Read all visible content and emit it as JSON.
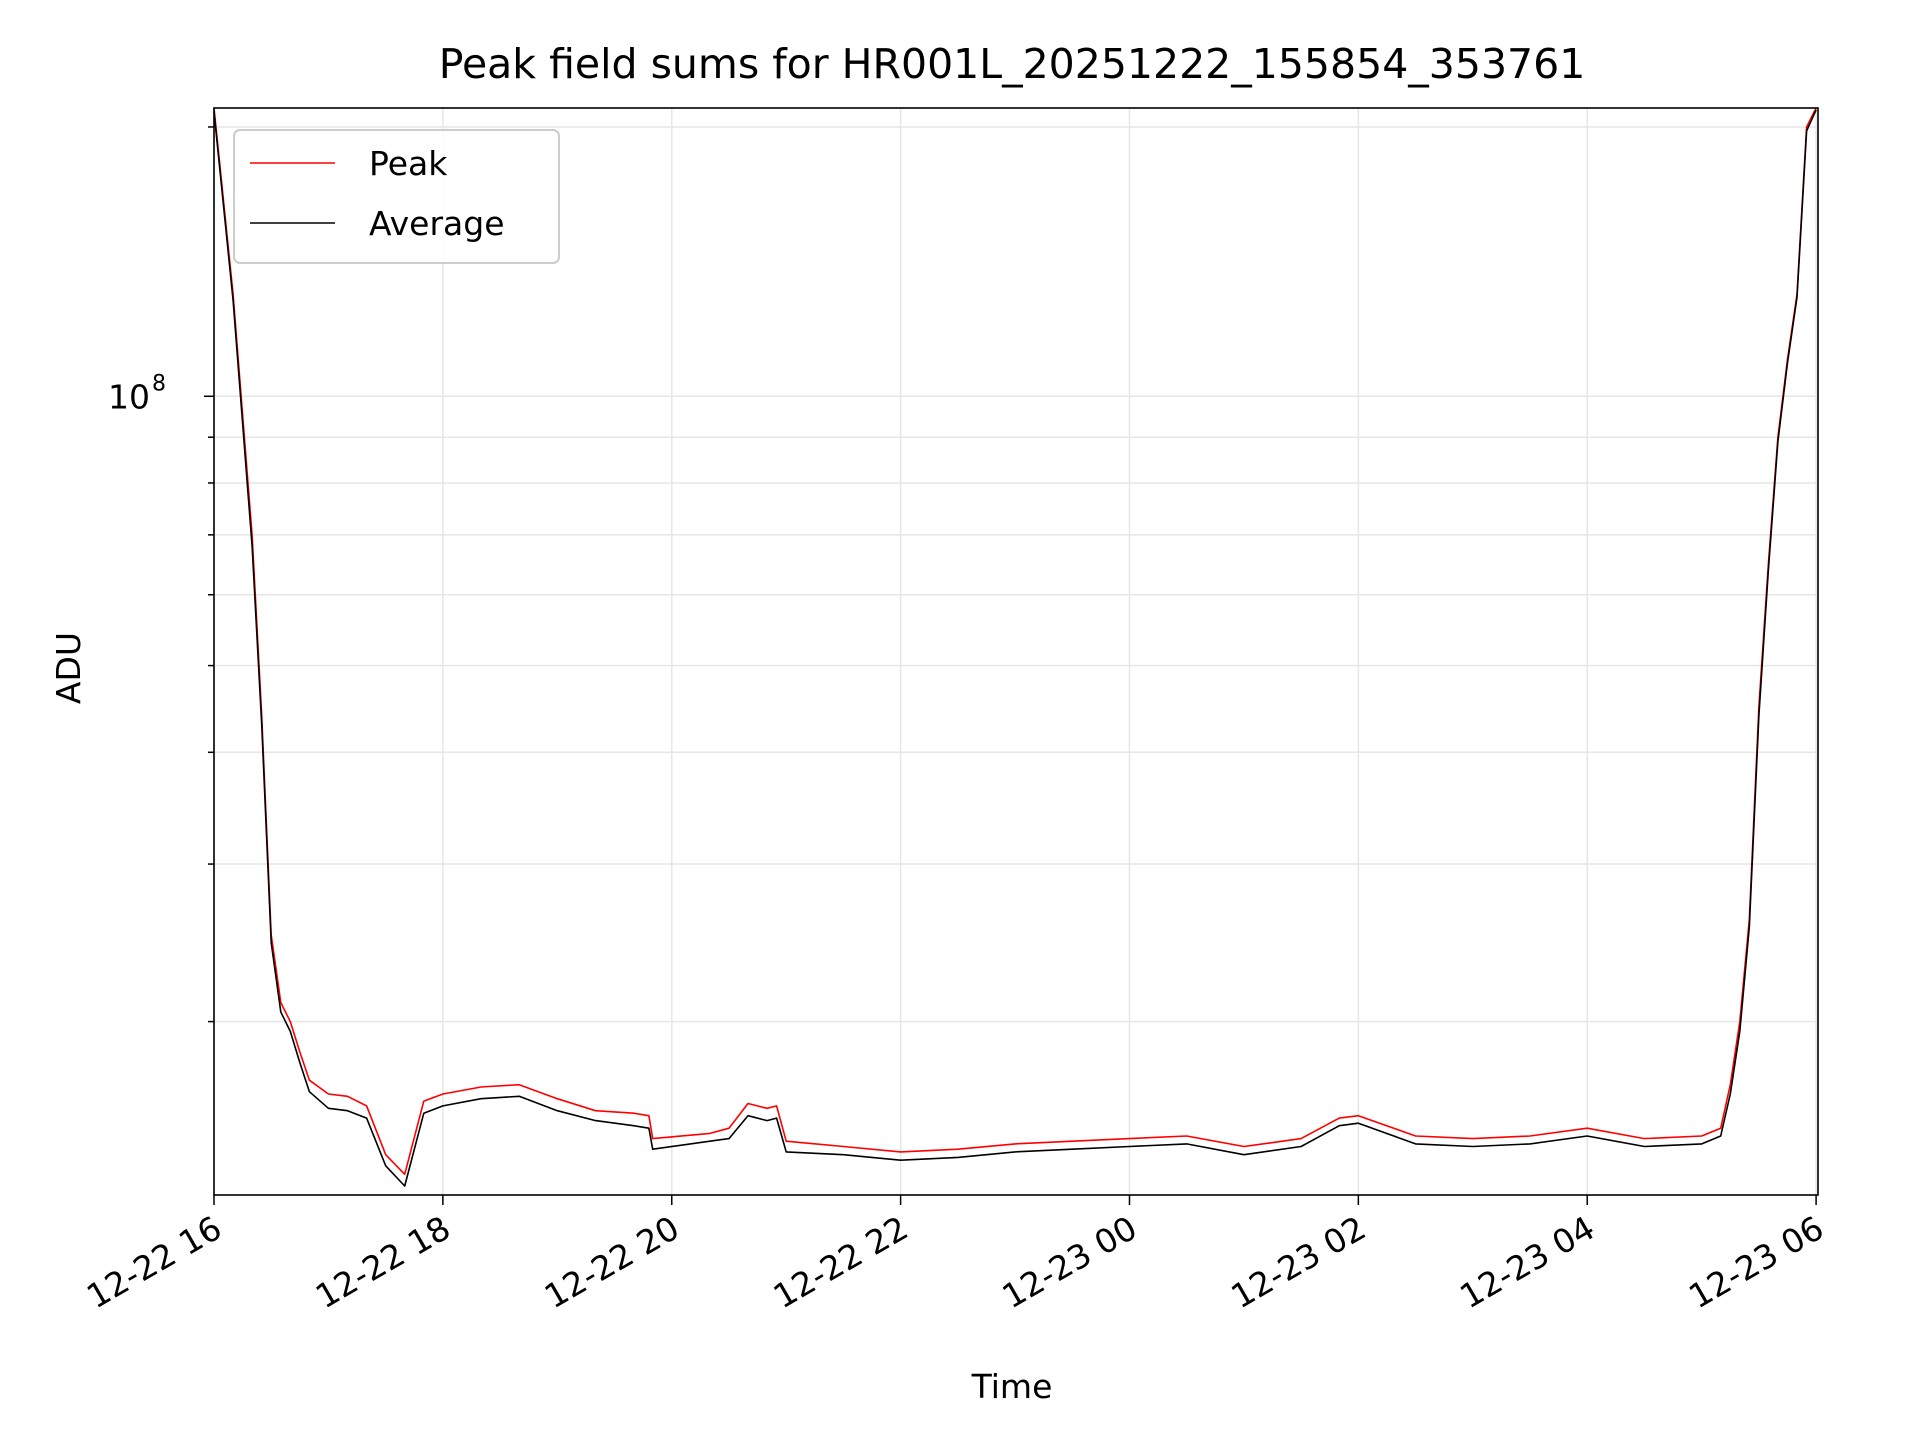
{
  "chart_data": {
    "type": "line",
    "title": "Peak field sums for HR001L_20251222_155854_353761",
    "xlabel": "Time",
    "ylabel": "ADU",
    "y_scale": "log",
    "ylim": [
      12800000,
      210000000
    ],
    "xlim": [
      "2025-12-22 16:00",
      "2025-12-23 06:01"
    ],
    "x_ticks": [
      "12-22 16",
      "12-22 18",
      "12-22 20",
      "12-22 22",
      "12-23 00",
      "12-23 02",
      "12-23 04",
      "12-23 06"
    ],
    "y_ticks": [
      {
        "value": 100000000,
        "base": "10",
        "exp": "8"
      }
    ],
    "grid": true,
    "legend": {
      "position": "top-left"
    },
    "series": [
      {
        "name": "Peak",
        "color": "#ff0000",
        "x": [
          "2025-12-22 16:00",
          "2025-12-22 16:10",
          "2025-12-22 16:20",
          "2025-12-22 16:25",
          "2025-12-22 16:30",
          "2025-12-22 16:35",
          "2025-12-22 16:40",
          "2025-12-22 16:45",
          "2025-12-22 16:50",
          "2025-12-22 17:00",
          "2025-12-22 17:10",
          "2025-12-22 17:20",
          "2025-12-22 17:30",
          "2025-12-22 17:40",
          "2025-12-22 17:50",
          "2025-12-22 18:00",
          "2025-12-22 18:20",
          "2025-12-22 18:40",
          "2025-12-22 19:00",
          "2025-12-22 19:20",
          "2025-12-22 19:40",
          "2025-12-22 19:48",
          "2025-12-22 19:50",
          "2025-12-22 20:20",
          "2025-12-22 20:30",
          "2025-12-22 20:40",
          "2025-12-22 20:50",
          "2025-12-22 20:55",
          "2025-12-22 21:00",
          "2025-12-22 21:30",
          "2025-12-22 22:00",
          "2025-12-22 22:30",
          "2025-12-22 23:00",
          "2025-12-22 23:30",
          "2025-12-23 00:00",
          "2025-12-23 00:30",
          "2025-12-23 01:00",
          "2025-12-23 01:30",
          "2025-12-23 01:50",
          "2025-12-23 02:00",
          "2025-12-23 02:30",
          "2025-12-23 03:00",
          "2025-12-23 03:30",
          "2025-12-23 04:00",
          "2025-12-23 04:30",
          "2025-12-23 05:00",
          "2025-12-23 05:10",
          "2025-12-23 05:15",
          "2025-12-23 05:20",
          "2025-12-23 05:25",
          "2025-12-23 05:30",
          "2025-12-23 05:35",
          "2025-12-23 05:40",
          "2025-12-23 05:45",
          "2025-12-23 05:50",
          "2025-12-23 05:55",
          "2025-12-23 06:00"
        ],
        "y": [
          210000000,
          130000000,
          70000000,
          44000000,
          25000000,
          21000000,
          20000000,
          18500000,
          17200000,
          16600000,
          16500000,
          16100000,
          14200000,
          13500000,
          16300000,
          16600000,
          16900000,
          17000000,
          16400000,
          15900000,
          15800000,
          15700000,
          14800000,
          15000000,
          15200000,
          16200000,
          16000000,
          16100000,
          14700000,
          14500000,
          14300000,
          14400000,
          14600000,
          14700000,
          14800000,
          14900000,
          14500000,
          14800000,
          15600000,
          15700000,
          14900000,
          14800000,
          14900000,
          15200000,
          14800000,
          14900000,
          15200000,
          17000000,
          20000000,
          26000000,
          45000000,
          65000000,
          90000000,
          110000000,
          130000000,
          200000000,
          210000000
        ]
      },
      {
        "name": "Average",
        "color": "#000000",
        "x": [
          "2025-12-22 16:00",
          "2025-12-22 16:10",
          "2025-12-22 16:20",
          "2025-12-22 16:25",
          "2025-12-22 16:30",
          "2025-12-22 16:35",
          "2025-12-22 16:40",
          "2025-12-22 16:45",
          "2025-12-22 16:50",
          "2025-12-22 17:00",
          "2025-12-22 17:10",
          "2025-12-22 17:20",
          "2025-12-22 17:30",
          "2025-12-22 17:40",
          "2025-12-22 17:50",
          "2025-12-22 18:00",
          "2025-12-22 18:20",
          "2025-12-22 18:40",
          "2025-12-22 19:00",
          "2025-12-22 19:20",
          "2025-12-22 19:40",
          "2025-12-22 19:48",
          "2025-12-22 19:50",
          "2025-12-22 20:20",
          "2025-12-22 20:30",
          "2025-12-22 20:40",
          "2025-12-22 20:50",
          "2025-12-22 20:55",
          "2025-12-22 21:00",
          "2025-12-22 21:30",
          "2025-12-22 22:00",
          "2025-12-22 22:30",
          "2025-12-22 23:00",
          "2025-12-22 23:30",
          "2025-12-23 00:00",
          "2025-12-23 00:30",
          "2025-12-23 01:00",
          "2025-12-23 01:30",
          "2025-12-23 01:50",
          "2025-12-23 02:00",
          "2025-12-23 02:30",
          "2025-12-23 03:00",
          "2025-12-23 03:30",
          "2025-12-23 04:00",
          "2025-12-23 04:30",
          "2025-12-23 05:00",
          "2025-12-23 05:10",
          "2025-12-23 05:15",
          "2025-12-23 05:20",
          "2025-12-23 05:25",
          "2025-12-23 05:30",
          "2025-12-23 05:35",
          "2025-12-23 05:40",
          "2025-12-23 05:45",
          "2025-12-23 05:50",
          "2025-12-23 05:55",
          "2025-12-23 06:00"
        ],
        "y": [
          208000000,
          128000000,
          68000000,
          43000000,
          24500000,
          20500000,
          19500000,
          18000000,
          16700000,
          16000000,
          15900000,
          15600000,
          13800000,
          13100000,
          15800000,
          16100000,
          16400000,
          16500000,
          15900000,
          15500000,
          15300000,
          15200000,
          14400000,
          14700000,
          14800000,
          15700000,
          15500000,
          15600000,
          14300000,
          14200000,
          14000000,
          14100000,
          14300000,
          14400000,
          14500000,
          14600000,
          14200000,
          14500000,
          15300000,
          15400000,
          14600000,
          14500000,
          14600000,
          14900000,
          14500000,
          14600000,
          14900000,
          16600000,
          19500000,
          25500000,
          44000000,
          64000000,
          89000000,
          109000000,
          129000000,
          198000000,
          209000000
        ]
      }
    ]
  }
}
